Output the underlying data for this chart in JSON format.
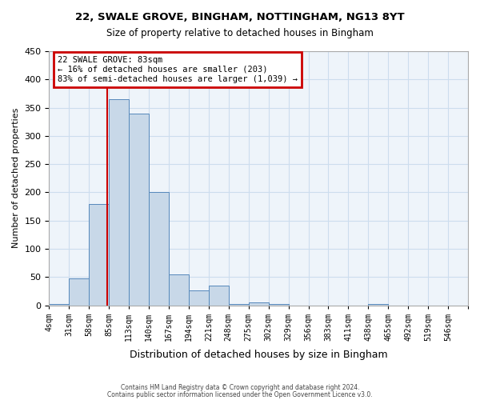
{
  "title1": "22, SWALE GROVE, BINGHAM, NOTTINGHAM, NG13 8YT",
  "title2": "Size of property relative to detached houses in Bingham",
  "xlabel": "Distribution of detached houses by size in Bingham",
  "ylabel": "Number of detached properties",
  "bin_edges": [
    4,
    31,
    58,
    85,
    112,
    139,
    166,
    193,
    220,
    247,
    274,
    301,
    328,
    355,
    382,
    409,
    436,
    463,
    490,
    517,
    544
  ],
  "bin_labels": [
    "4sqm",
    "31sqm",
    "58sqm",
    "85sqm",
    "113sqm",
    "140sqm",
    "167sqm",
    "194sqm",
    "221sqm",
    "248sqm",
    "275sqm",
    "302sqm",
    "329sqm",
    "356sqm",
    "383sqm",
    "411sqm",
    "438sqm",
    "465sqm",
    "492sqm",
    "519sqm",
    "546sqm"
  ],
  "counts": [
    2,
    48,
    180,
    365,
    340,
    200,
    55,
    27,
    35,
    2,
    5,
    2,
    0,
    0,
    0,
    0,
    2,
    0,
    0,
    0
  ],
  "bar_facecolor": "#c8d8e8",
  "bar_edgecolor": "#5588bb",
  "grid_color": "#ccddee",
  "bg_color": "#eef4fa",
  "vline_x": 83,
  "vline_color": "#cc0000",
  "annotation_text": "22 SWALE GROVE: 83sqm\n← 16% of detached houses are smaller (203)\n83% of semi-detached houses are larger (1,039) →",
  "annotation_box_color": "#cc0000",
  "ylim": [
    0,
    450
  ],
  "yticks": [
    0,
    50,
    100,
    150,
    200,
    250,
    300,
    350,
    400,
    450
  ],
  "footer1": "Contains HM Land Registry data © Crown copyright and database right 2024.",
  "footer2": "Contains public sector information licensed under the Open Government Licence v3.0."
}
